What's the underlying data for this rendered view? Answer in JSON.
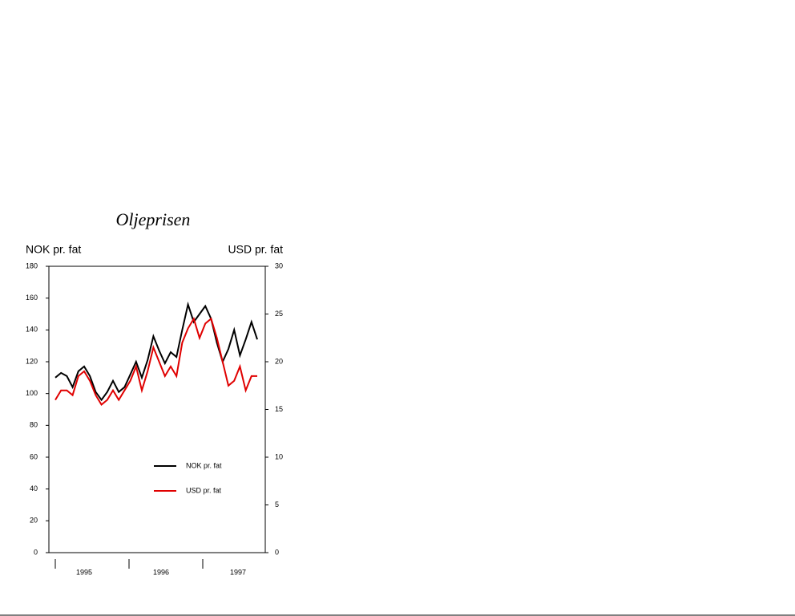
{
  "chart_data": {
    "type": "line",
    "title": "Oljeprisen",
    "ylabel": "NOK pr. fat",
    "y2label": "USD pr. fat",
    "x_labels": [
      "1995",
      "1996",
      "1997"
    ],
    "ylim": [
      0,
      180
    ],
    "yticks": [
      0,
      20,
      40,
      60,
      80,
      100,
      120,
      140,
      160,
      180
    ],
    "y2lim": [
      0,
      30
    ],
    "y2ticks": [
      0,
      5,
      10,
      15,
      20,
      25,
      30
    ],
    "series": [
      {
        "name": "NOK pr. fat",
        "color": "#000000",
        "values": [
          110,
          113,
          111,
          104,
          114,
          117,
          111,
          101,
          96,
          101,
          108,
          101,
          104,
          112,
          120,
          110,
          121,
          136,
          127,
          119,
          126,
          123,
          140,
          156,
          145,
          150,
          155,
          147,
          132,
          120,
          128,
          140,
          124,
          134,
          145,
          134
        ]
      },
      {
        "name": "USD pr. fat",
        "color": "#e00000",
        "axis": "y2",
        "values": [
          16,
          17,
          17,
          16.5,
          18.5,
          19,
          18,
          16.5,
          15.5,
          16,
          17,
          16,
          17,
          18,
          19.5,
          17,
          19,
          21.5,
          20,
          18.5,
          19.5,
          18.5,
          22,
          23.5,
          24.5,
          22.5,
          24,
          24.5,
          22.5,
          20,
          17.5,
          18,
          19.5,
          17,
          18.5,
          18.5
        ]
      }
    ]
  }
}
